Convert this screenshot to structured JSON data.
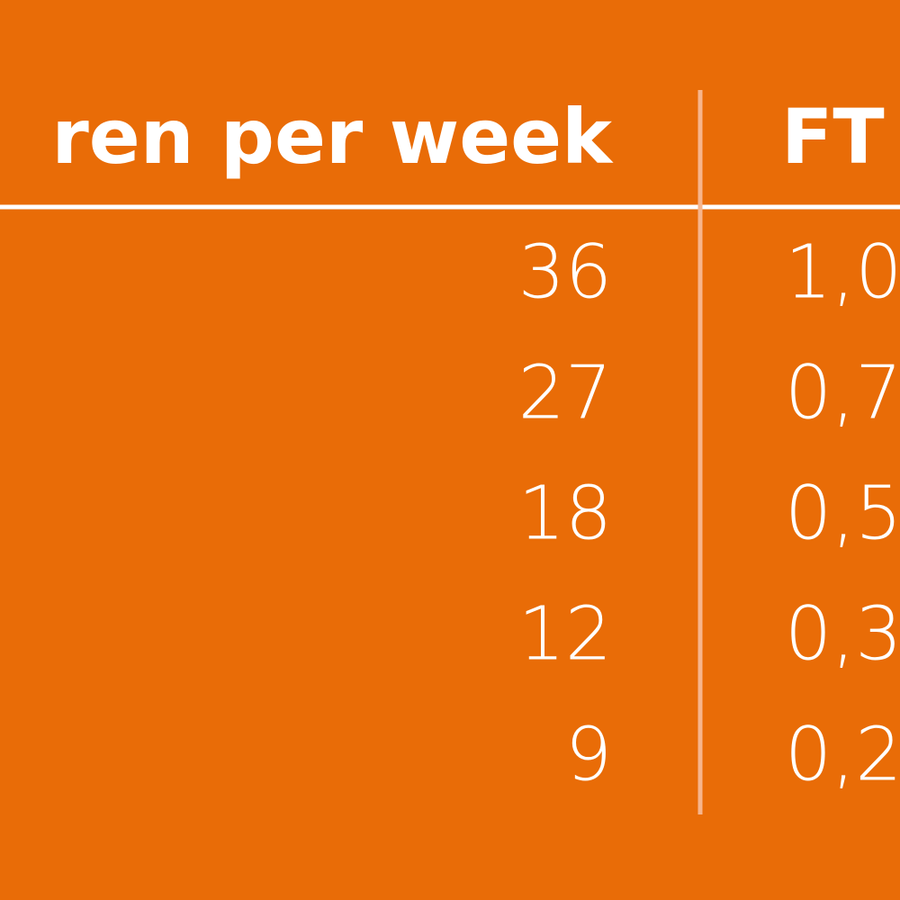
{
  "table": {
    "header": [
      "ren per week",
      "FT"
    ],
    "rows": [
      [
        36,
        "1,0"
      ],
      [
        27,
        "0,7"
      ],
      [
        18,
        "0,5"
      ],
      [
        12,
        "0,3"
      ],
      [
        9,
        "0,2"
      ]
    ]
  }
}
